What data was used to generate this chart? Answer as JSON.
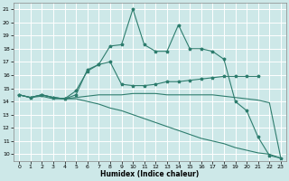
{
  "xlabel": "Humidex (Indice chaleur)",
  "bg_color": "#cde8e8",
  "grid_color": "#ffffff",
  "line_color": "#2e7d6e",
  "xlim": [
    -0.5,
    23.5
  ],
  "ylim": [
    9.5,
    21.5
  ],
  "xticks": [
    0,
    1,
    2,
    3,
    4,
    5,
    6,
    7,
    8,
    9,
    10,
    11,
    12,
    13,
    14,
    15,
    16,
    17,
    18,
    19,
    20,
    21,
    22,
    23
  ],
  "yticks": [
    10,
    11,
    12,
    13,
    14,
    15,
    16,
    17,
    18,
    19,
    20,
    21
  ],
  "line_volatile_x": [
    0,
    1,
    2,
    3,
    4,
    5,
    6,
    7,
    8,
    9,
    10,
    11,
    12,
    13,
    14,
    15,
    16,
    17,
    18,
    19,
    20,
    21,
    22,
    23
  ],
  "line_volatile_y": [
    14.5,
    14.3,
    14.5,
    14.3,
    14.2,
    14.5,
    16.4,
    16.8,
    18.2,
    18.3,
    21.0,
    18.3,
    17.8,
    17.8,
    19.8,
    18.0,
    18.0,
    17.8,
    17.2,
    14.0,
    13.3,
    11.3,
    9.9,
    9.7
  ],
  "line_moderate_x": [
    0,
    1,
    2,
    3,
    4,
    5,
    6,
    7,
    8,
    9,
    10,
    11,
    12,
    13,
    14,
    15,
    16,
    17,
    18,
    19,
    20,
    21
  ],
  "line_moderate_y": [
    14.5,
    14.3,
    14.5,
    14.3,
    14.2,
    14.8,
    16.3,
    16.8,
    17.0,
    15.3,
    15.2,
    15.2,
    15.3,
    15.5,
    15.5,
    15.6,
    15.7,
    15.8,
    15.9,
    15.9,
    15.9,
    15.9
  ],
  "line_flat_x": [
    0,
    1,
    2,
    3,
    4,
    5,
    6,
    7,
    8,
    9,
    10,
    11,
    12,
    13,
    14,
    15,
    16,
    17,
    18,
    19,
    20,
    21,
    22,
    23
  ],
  "line_flat_y": [
    14.5,
    14.3,
    14.5,
    14.3,
    14.2,
    14.3,
    14.4,
    14.5,
    14.5,
    14.5,
    14.6,
    14.6,
    14.6,
    14.5,
    14.5,
    14.5,
    14.5,
    14.5,
    14.4,
    14.3,
    14.2,
    14.1,
    13.9,
    9.7
  ],
  "line_descend_x": [
    0,
    1,
    2,
    3,
    4,
    5,
    6,
    7,
    8,
    9,
    10,
    11,
    12,
    13,
    14,
    15,
    16,
    17,
    18,
    19,
    20,
    21,
    22,
    23
  ],
  "line_descend_y": [
    14.5,
    14.3,
    14.4,
    14.2,
    14.2,
    14.2,
    14.0,
    13.8,
    13.5,
    13.3,
    13.0,
    12.7,
    12.4,
    12.1,
    11.8,
    11.5,
    11.2,
    11.0,
    10.8,
    10.5,
    10.3,
    10.1,
    10.0,
    9.7
  ]
}
